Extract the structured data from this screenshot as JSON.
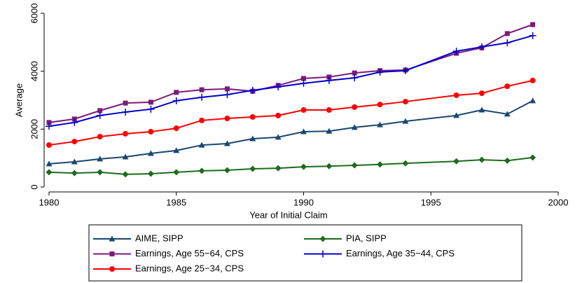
{
  "chart_data": {
    "type": "line",
    "xlabel": "Year of Initial Claim",
    "ylabel": "Average",
    "x": [
      1980,
      1981,
      1982,
      1983,
      1984,
      1985,
      1986,
      1987,
      1988,
      1989,
      1990,
      1991,
      1992,
      1993,
      1994,
      1996,
      1997,
      1998,
      1999
    ],
    "series": [
      {
        "name": "AIME, SIPP",
        "color": "#1a476f",
        "marker": "triangle",
        "values": [
          800,
          870,
          970,
          1040,
          1160,
          1260,
          1450,
          1500,
          1670,
          1720,
          1910,
          1930,
          2060,
          2150,
          2270,
          2470,
          2660,
          2520,
          2980
        ]
      },
      {
        "name": "PIA, SIPP",
        "color": "#1e6b1e",
        "marker": "diamond",
        "values": [
          510,
          480,
          510,
          440,
          460,
          510,
          560,
          580,
          630,
          650,
          700,
          720,
          750,
          780,
          820,
          890,
          940,
          910,
          1020
        ]
      },
      {
        "name": "Earnings, Age 55−64, CPS",
        "color": "#7a1a7a",
        "marker": "square",
        "values": [
          2230,
          2350,
          2640,
          2900,
          2930,
          3270,
          3360,
          3390,
          3310,
          3510,
          3750,
          3800,
          3940,
          4020,
          4040,
          4620,
          4810,
          5300,
          5610
        ]
      },
      {
        "name": "Earnings, Age 35−44, CPS",
        "color": "#0000cc",
        "marker": "plus",
        "values": [
          2100,
          2230,
          2470,
          2590,
          2690,
          2980,
          3100,
          3190,
          3340,
          3460,
          3580,
          3680,
          3770,
          3970,
          4020,
          4690,
          4840,
          4980,
          5230
        ]
      },
      {
        "name": "Earnings, Age 25−34, CPS",
        "color": "#ff0000",
        "marker": "circle",
        "values": [
          1450,
          1570,
          1740,
          1840,
          1910,
          2030,
          2300,
          2370,
          2420,
          2470,
          2660,
          2660,
          2760,
          2850,
          2950,
          3170,
          3240,
          3480,
          3680
        ]
      }
    ],
    "xlim": [
      1980,
      2000
    ],
    "xticks": [
      1980,
      1985,
      1990,
      1995,
      2000
    ],
    "ylim": [
      0,
      6000
    ],
    "yticks": [
      0,
      2000,
      4000,
      6000
    ]
  }
}
